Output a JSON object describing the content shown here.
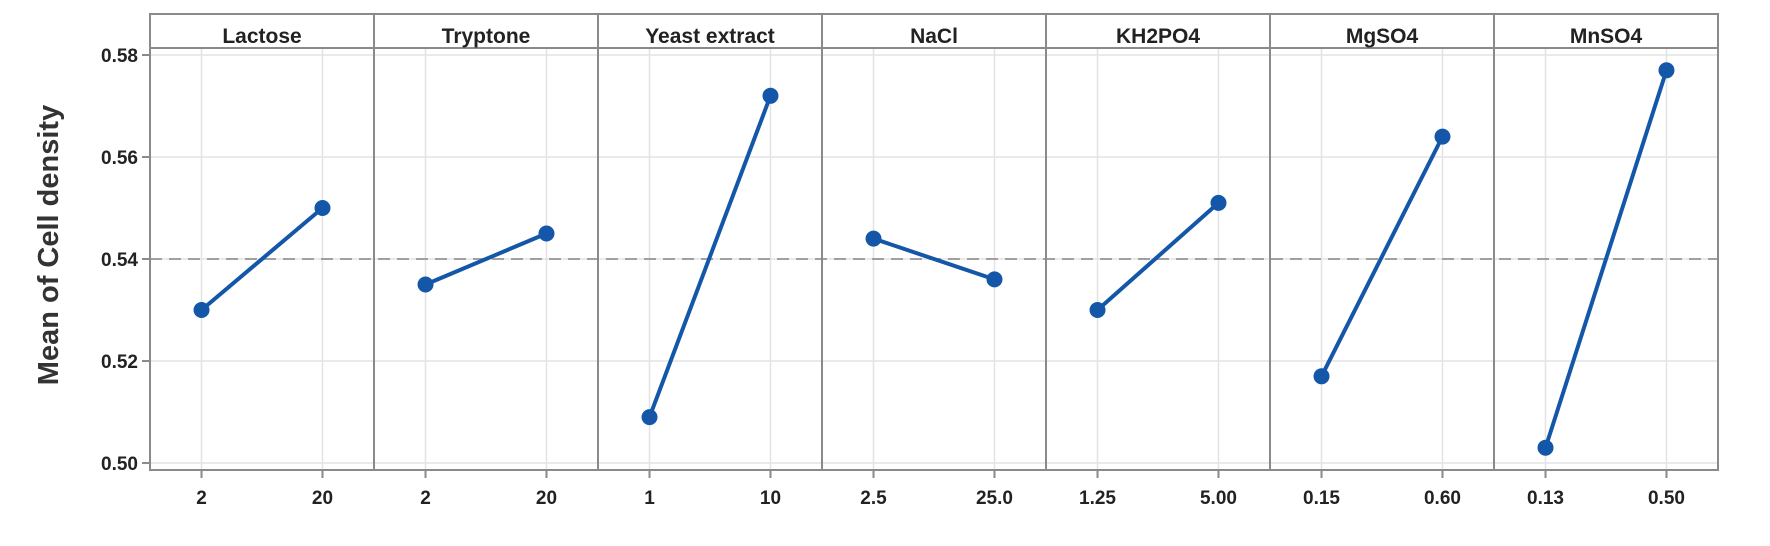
{
  "chart_data": {
    "type": "line",
    "ylabel": "Mean of Cell density",
    "ylim": [
      0.5,
      0.58
    ],
    "yticks": [
      "0.50",
      "0.52",
      "0.54",
      "0.56",
      "0.58"
    ],
    "reference_line": 0.54,
    "grid": true,
    "colors": {
      "series": "#1457a8",
      "reference": "#a0a0a0",
      "grid": "#e3e3e3",
      "frame": "#8a8a8a"
    },
    "panels": [
      {
        "name": "Lactose",
        "levels": [
          "2",
          "20"
        ],
        "values": [
          0.53,
          0.55
        ]
      },
      {
        "name": "Tryptone",
        "levels": [
          "2",
          "20"
        ],
        "values": [
          0.535,
          0.545
        ]
      },
      {
        "name": "Yeast extract",
        "levels": [
          "1",
          "10"
        ],
        "values": [
          0.509,
          0.572
        ]
      },
      {
        "name": "NaCl",
        "levels": [
          "2.5",
          "25.0"
        ],
        "values": [
          0.544,
          0.536
        ]
      },
      {
        "name": "KH2PO4",
        "levels": [
          "1.25",
          "5.00"
        ],
        "values": [
          0.53,
          0.551
        ]
      },
      {
        "name": "MgSO4",
        "levels": [
          "0.15",
          "0.60"
        ],
        "values": [
          0.517,
          0.564
        ]
      },
      {
        "name": "MnSO4",
        "levels": [
          "0.13",
          "0.50"
        ],
        "values": [
          0.503,
          0.577
        ]
      }
    ]
  }
}
